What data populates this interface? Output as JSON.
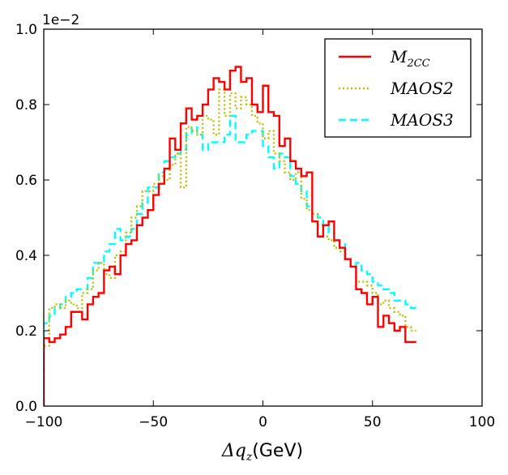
{
  "chart_data": {
    "type": "histogram-step",
    "title": "",
    "xlabel": "Δq_z (GeV)",
    "xlabel_main": "Δq",
    "xlabel_sub": "z",
    "xlabel_unit": "(GeV)",
    "ylabel": "",
    "offset_text": "1e−2",
    "xlim": [
      -100,
      100
    ],
    "ylim": [
      0.0,
      1.0
    ],
    "xticks": [
      -100,
      -50,
      0,
      50,
      100
    ],
    "xtick_labels": [
      "−100",
      "−50",
      "0",
      "50",
      "100"
    ],
    "yticks": [
      0.0,
      0.2,
      0.4,
      0.6,
      0.8,
      1.0
    ],
    "ytick_labels": [
      "0.0",
      "0.2",
      "0.4",
      "0.6",
      "0.8",
      "1.0"
    ],
    "grid": false,
    "legend_position": "top-right",
    "bin_edges_start": -100,
    "bin_width": 2.5,
    "series": [
      {
        "name": "M_2CC",
        "label_main": "M",
        "label_sub": "2CC",
        "color": "#ff0000",
        "style": "solid",
        "values": [
          0.18,
          0.17,
          0.18,
          0.19,
          0.21,
          0.25,
          0.25,
          0.23,
          0.27,
          0.29,
          0.3,
          0.36,
          0.37,
          0.35,
          0.4,
          0.43,
          0.44,
          0.48,
          0.5,
          0.52,
          0.56,
          0.59,
          0.63,
          0.71,
          0.68,
          0.75,
          0.79,
          0.76,
          0.77,
          0.8,
          0.84,
          0.87,
          0.86,
          0.84,
          0.89,
          0.9,
          0.86,
          0.87,
          0.8,
          0.78,
          0.85,
          0.78,
          0.77,
          0.69,
          0.71,
          0.65,
          0.63,
          0.61,
          0.62,
          0.49,
          0.45,
          0.48,
          0.49,
          0.44,
          0.42,
          0.39,
          0.37,
          0.31,
          0.3,
          0.27,
          0.29,
          0.21,
          0.24,
          0.22,
          0.2,
          0.21,
          0.17,
          0.17
        ]
      },
      {
        "name": "MAOS2",
        "label_main": "MAOS2",
        "label_sub": "",
        "color": "#bfbf00",
        "style": "dotted",
        "values": [
          0.16,
          0.26,
          0.27,
          0.26,
          0.28,
          0.27,
          0.26,
          0.3,
          0.31,
          0.36,
          0.38,
          0.35,
          0.34,
          0.4,
          0.41,
          0.46,
          0.5,
          0.53,
          0.57,
          0.57,
          0.59,
          0.61,
          0.6,
          0.64,
          0.67,
          0.58,
          0.74,
          0.73,
          0.72,
          0.77,
          0.76,
          0.72,
          0.84,
          0.77,
          0.83,
          0.79,
          0.82,
          0.8,
          0.77,
          0.75,
          0.71,
          0.73,
          0.67,
          0.65,
          0.62,
          0.6,
          0.62,
          0.55,
          0.52,
          0.51,
          0.48,
          0.45,
          0.44,
          0.42,
          0.41,
          0.39,
          0.37,
          0.33,
          0.33,
          0.32,
          0.3,
          0.27,
          0.28,
          0.26,
          0.25,
          0.24,
          0.21,
          0.2
        ]
      },
      {
        "name": "MAOS3",
        "label_main": "MAOS3",
        "label_sub": "",
        "color": "#00ffff",
        "style": "dashed",
        "values": [
          0.22,
          0.24,
          0.26,
          0.27,
          0.29,
          0.3,
          0.31,
          0.31,
          0.34,
          0.38,
          0.38,
          0.41,
          0.43,
          0.47,
          0.44,
          0.45,
          0.47,
          0.51,
          0.54,
          0.58,
          0.58,
          0.62,
          0.65,
          0.66,
          0.67,
          0.68,
          0.72,
          0.74,
          0.72,
          0.68,
          0.7,
          0.7,
          0.7,
          0.72,
          0.77,
          0.7,
          0.7,
          0.72,
          0.73,
          0.73,
          0.69,
          0.66,
          0.63,
          0.67,
          0.66,
          0.61,
          0.59,
          0.57,
          0.53,
          0.51,
          0.5,
          0.48,
          0.46,
          0.44,
          0.43,
          0.39,
          0.37,
          0.38,
          0.36,
          0.35,
          0.33,
          0.32,
          0.31,
          0.3,
          0.28,
          0.28,
          0.27,
          0.26
        ]
      }
    ]
  }
}
